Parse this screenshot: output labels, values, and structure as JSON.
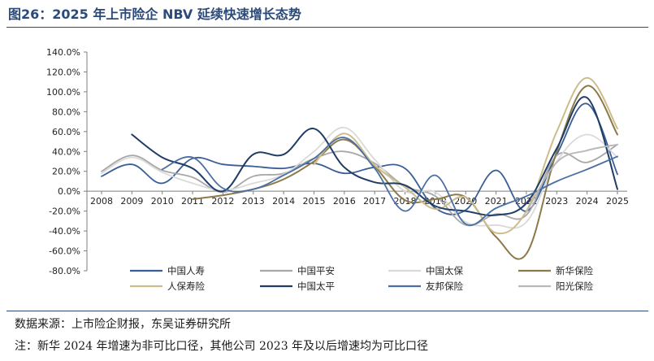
{
  "figure": {
    "title": "图26：2025 年上市险企 NBV 延续快速增长态势",
    "source": "数据来源：上市险企财报，东吴证券研究所",
    "note": "注：新华 2024 年增速为非可比口径，其他公司 2023 年及以后增速均为可比口径"
  },
  "colors": {
    "rule": "#2a4a7a",
    "title": "#2a4a7a"
  },
  "chart_data": {
    "type": "line",
    "title": "",
    "xlabel": "",
    "ylabel": "",
    "ylim": [
      -80,
      140
    ],
    "yticks": [
      -80,
      -60,
      -40,
      -20,
      0,
      20,
      40,
      60,
      80,
      100,
      120,
      140
    ],
    "ytick_labels": [
      "-80.0%",
      "-60.0%",
      "-40.0%",
      "-20.0%",
      "0.0%",
      "20.0%",
      "40.0%",
      "60.0%",
      "80.0%",
      "100.0%",
      "120.0%",
      "140.0%"
    ],
    "categories": [
      "2008",
      "2009",
      "2010",
      "2011",
      "2012",
      "2013",
      "2014",
      "2015",
      "2016",
      "2017",
      "2018",
      "2019",
      "2020",
      "2021",
      "2022",
      "2023",
      "2024",
      "2025"
    ],
    "legend_position": "bottom",
    "grid": false,
    "series": [
      {
        "name": "中国人寿",
        "color": "#3a5f96",
        "width": 1.8,
        "values": [
          15,
          27,
          8,
          33,
          27,
          25,
          23,
          28,
          18,
          24,
          23,
          -17,
          -19,
          21,
          -20,
          37,
          88,
          17
        ]
      },
      {
        "name": "中国平安",
        "color": "#a8a8a8",
        "width": 1.8,
        "values": [
          20,
          36,
          21,
          14,
          -1,
          15,
          18,
          33,
          40,
          28,
          5,
          -5,
          -34,
          -23,
          -24,
          36,
          29,
          47
        ]
      },
      {
        "name": "中国太保",
        "color": "#dadada",
        "width": 1.8,
        "values": [
          18,
          34,
          19,
          8,
          1,
          8,
          17,
          40,
          64,
          32,
          0,
          -1,
          -31,
          -34,
          -31,
          30,
          57,
          34
        ]
      },
      {
        "name": "新华保险",
        "color": "#8c7a4a",
        "width": 2.0,
        "values": [
          null,
          null,
          null,
          -8,
          -4,
          2,
          12,
          30,
          52,
          25,
          -9,
          -8,
          -6,
          -46,
          -63,
          40,
          106,
          57
        ]
      },
      {
        "name": "人保寿险",
        "color": "#cdbd8c",
        "width": 2.0,
        "values": [
          null,
          null,
          null,
          null,
          null,
          null,
          null,
          27,
          58,
          26,
          4,
          -18,
          -6,
          -42,
          -20,
          60,
          114,
          63
        ]
      },
      {
        "name": "中国太平",
        "color": "#1f3d66",
        "width": 2.0,
        "values": [
          null,
          57,
          34,
          23,
          0,
          37,
          37,
          63,
          24,
          9,
          6,
          -15,
          -20,
          -24,
          -12,
          43,
          94,
          2
        ]
      },
      {
        "name": "友邦保险",
        "color": "#4a6fa5",
        "width": 1.8,
        "values": [
          null,
          null,
          22,
          34,
          3,
          2,
          16,
          33,
          54,
          23,
          -20,
          16,
          -33,
          -17,
          -5,
          10,
          22,
          35
        ]
      },
      {
        "name": "阳光保险",
        "color": "#b8b8b8",
        "width": 1.8,
        "values": [
          null,
          null,
          null,
          null,
          null,
          null,
          null,
          null,
          null,
          null,
          null,
          null,
          null,
          null,
          -21,
          29,
          41,
          47
        ]
      }
    ]
  }
}
